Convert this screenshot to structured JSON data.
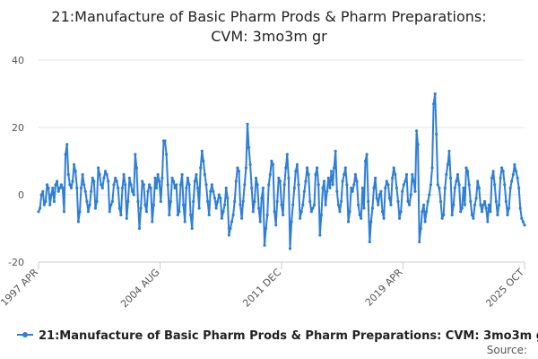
{
  "title_line1": "21:Manufacture of Basic Pharm Prods & Pharm Preparations:",
  "title_line2": "CVM: 3mo3m gr",
  "legend_label": "21:Manufacture of Basic Pharm Prods & Pharm Preparations: CVM: 3mo3m gr",
  "source_label": "Source:",
  "line_color": "#2f7ed8",
  "chart_data": {
    "type": "line",
    "title": "21:Manufacture of Basic Pharm Prods & Pharm Preparations: CVM: 3mo3m gr",
    "xlabel": "",
    "ylabel": "",
    "ylim": [
      -20,
      40
    ],
    "yticks": [
      -20,
      0,
      20,
      40
    ],
    "xticks": [
      "1997 APR",
      "2004 AUG",
      "2011 DEC",
      "2019 APR",
      "2025 OCT"
    ],
    "x_start": "1997 APR",
    "x_end": "2025 OCT",
    "grid": "horizontal",
    "legend": "bottom",
    "series": [
      {
        "name": "21:Manufacture of Basic Pharm Prods & Pharm Preparations: CVM: 3mo3m gr",
        "values": [
          -5,
          -4,
          0,
          1,
          -3,
          -2,
          3,
          2,
          -3,
          0,
          2,
          -2,
          3,
          4,
          1,
          2,
          3,
          2,
          -5,
          12,
          15,
          6,
          3,
          2,
          4,
          9,
          7,
          2,
          -8,
          -5,
          2,
          6,
          3,
          1,
          -2,
          -5,
          -3,
          1,
          5,
          4,
          -4,
          -2,
          8,
          6,
          3,
          2,
          5,
          7,
          6,
          4,
          -5,
          -3,
          -2,
          3,
          5,
          4,
          2,
          -4,
          -6,
          2,
          6,
          3,
          -7,
          -2,
          5,
          3,
          1,
          0,
          12,
          8,
          -2,
          -10,
          -4,
          4,
          3,
          -3,
          -5,
          1,
          3,
          2,
          -8,
          -3,
          5,
          2,
          6,
          4,
          -2,
          5,
          16,
          16,
          12,
          3,
          -6,
          -2,
          5,
          4,
          2,
          3,
          -6,
          -5,
          3,
          6,
          -3,
          -8,
          2,
          5,
          3,
          -6,
          -10,
          -2,
          4,
          6,
          2,
          -4,
          8,
          13,
          10,
          6,
          3,
          -2,
          -6,
          1,
          3,
          1,
          -1,
          -4,
          -2,
          0,
          -1,
          -7,
          -5,
          -3,
          2,
          -1,
          -12,
          -10,
          -8,
          -6,
          -2,
          4,
          8,
          7,
          -3,
          -7,
          -2,
          3,
          8,
          21,
          14,
          9,
          2,
          -5,
          -2,
          5,
          3,
          -4,
          -8,
          -1,
          2,
          -15,
          -10,
          -6,
          3,
          6,
          10,
          9,
          -5,
          -9,
          -2,
          5,
          4,
          -3,
          -6,
          3,
          8,
          12,
          5,
          -16,
          -8,
          -3,
          2,
          7,
          9,
          3,
          -7,
          -5,
          -3,
          1,
          4,
          8,
          6,
          -2,
          -5,
          -4,
          -3,
          6,
          8,
          3,
          -12,
          -6,
          2,
          4,
          -3,
          1,
          5,
          2,
          7,
          3,
          8,
          13,
          1,
          -3,
          -5,
          -2,
          4,
          6,
          8,
          3,
          -8,
          -5,
          2,
          1,
          3,
          6,
          4,
          -3,
          -6,
          -7,
          2,
          -4,
          10,
          12,
          -2,
          -14,
          -8,
          -4,
          2,
          5,
          -1,
          -3,
          0,
          1,
          -5,
          -7,
          2,
          4,
          3,
          -1,
          -3,
          5,
          8,
          6,
          2,
          -2,
          -7,
          -5,
          1,
          3,
          4,
          6,
          -2,
          -3,
          0,
          6,
          4,
          1,
          19,
          15,
          -14,
          -10,
          -5,
          -3,
          -8,
          -5,
          -2,
          0,
          3,
          8,
          27,
          30,
          18,
          3,
          2,
          -2,
          -7,
          -6,
          2,
          6,
          9,
          13,
          5,
          -6,
          -3,
          2,
          4,
          6,
          3,
          -5,
          -4,
          2,
          -3,
          8,
          7,
          3,
          -2,
          -6,
          -7,
          -3,
          -1,
          4,
          2,
          -3,
          -5,
          -3,
          -2,
          -4,
          -8,
          -3,
          -5,
          5,
          7,
          3,
          -2,
          -6,
          -3,
          5,
          8,
          7,
          3,
          -2,
          -6,
          -4,
          2,
          4,
          6,
          9,
          7,
          5,
          2,
          -4,
          -7,
          -8,
          -9
        ]
      }
    ]
  }
}
